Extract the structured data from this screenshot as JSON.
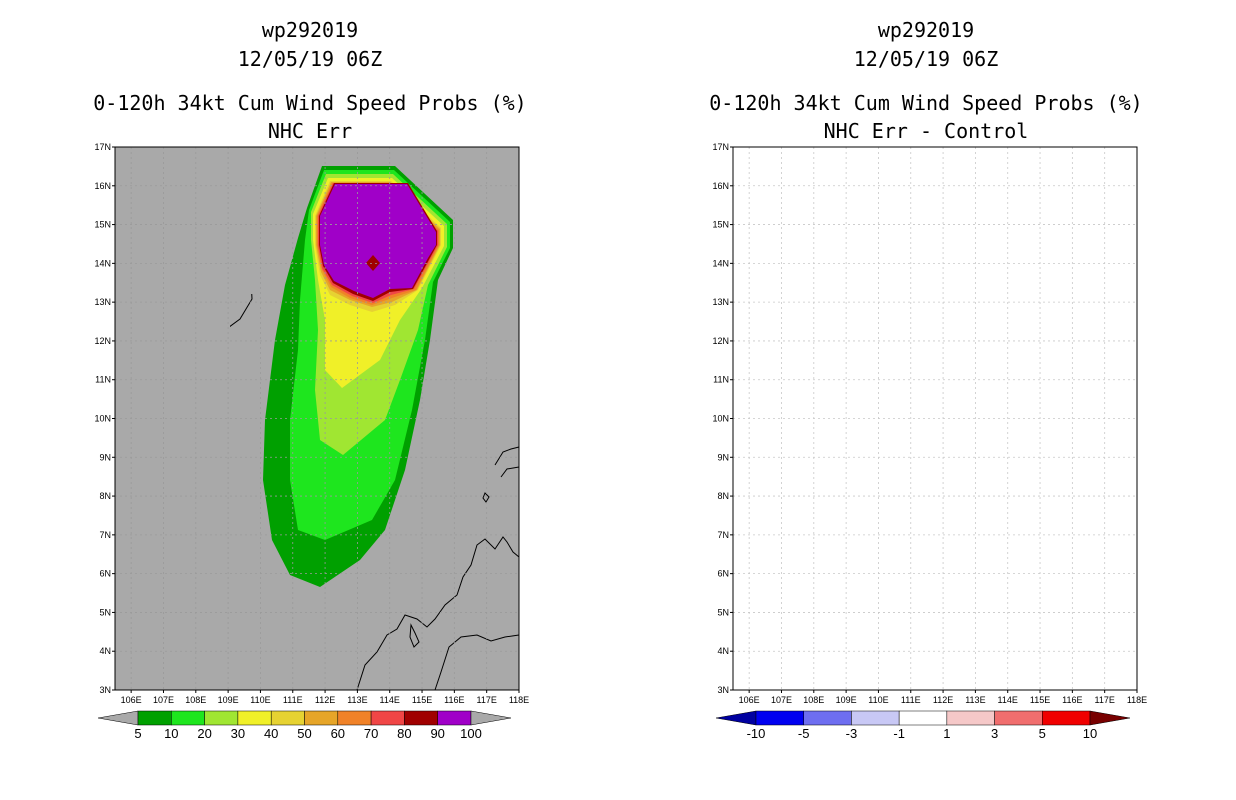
{
  "colors": {
    "land_gray": "#a9a9a9",
    "coast": "#000000",
    "grid": "#c8c8c8"
  },
  "chart_data": [
    {
      "type": "heatmap",
      "title_lines": [
        "wp292019",
        "12/05/19 06Z",
        "0-120h 34kt Cum Wind Speed Probs (%)",
        "NHC Err"
      ],
      "xaxis": {
        "range": [
          105.5,
          118
        ],
        "tick_labels": [
          "106E",
          "107E",
          "108E",
          "109E",
          "110E",
          "111E",
          "112E",
          "113E",
          "114E",
          "115E",
          "116E",
          "117E",
          "118E"
        ]
      },
      "yaxis": {
        "range": [
          3,
          17
        ],
        "tick_labels": [
          "3N",
          "4N",
          "5N",
          "6N",
          "7N",
          "8N",
          "9N",
          "10N",
          "11N",
          "12N",
          "13N",
          "14N",
          "15N",
          "16N",
          "17N"
        ]
      },
      "contour_levels": [
        5,
        10,
        20,
        30,
        40,
        50,
        60,
        70,
        80,
        90,
        100
      ],
      "colorbar": {
        "labels": [
          "5",
          "10",
          "20",
          "30",
          "40",
          "50",
          "60",
          "70",
          "80",
          "90",
          "100"
        ],
        "colors": [
          "#00a000",
          "#1ee61e",
          "#a0e632",
          "#f0f028",
          "#e6d232",
          "#e6a528",
          "#f08228",
          "#f04646",
          "#a00000",
          "#a000c8"
        ],
        "under_color": "#a9a9a9",
        "over_color": "#a9a9a9"
      },
      "max_center": {
        "lon": 113.0,
        "lat": 14.0
      }
    },
    {
      "type": "heatmap",
      "title_lines": [
        "wp292019",
        "12/05/19 06Z",
        "0-120h 34kt Cum Wind Speed Probs (%)",
        "NHC Err - Control"
      ],
      "xaxis": {
        "range": [
          105.5,
          118
        ],
        "tick_labels": [
          "106E",
          "107E",
          "108E",
          "109E",
          "110E",
          "111E",
          "112E",
          "113E",
          "114E",
          "115E",
          "116E",
          "117E",
          "118E"
        ]
      },
      "yaxis": {
        "range": [
          3,
          17
        ],
        "tick_labels": [
          "3N",
          "4N",
          "5N",
          "6N",
          "7N",
          "8N",
          "9N",
          "10N",
          "11N",
          "12N",
          "13N",
          "14N",
          "15N",
          "16N",
          "17N"
        ]
      },
      "colorbar": {
        "labels": [
          "-10",
          "-5",
          "-3",
          "-1",
          "1",
          "3",
          "5",
          "10"
        ],
        "colors": [
          "#0000f0",
          "#6e6ef0",
          "#c8c8f5",
          "#ffffff",
          "#f5c8c8",
          "#f06e6e",
          "#f00000"
        ],
        "under_color": "#0000a0",
        "over_color": "#780000"
      },
      "all_values_near_zero": true
    }
  ]
}
